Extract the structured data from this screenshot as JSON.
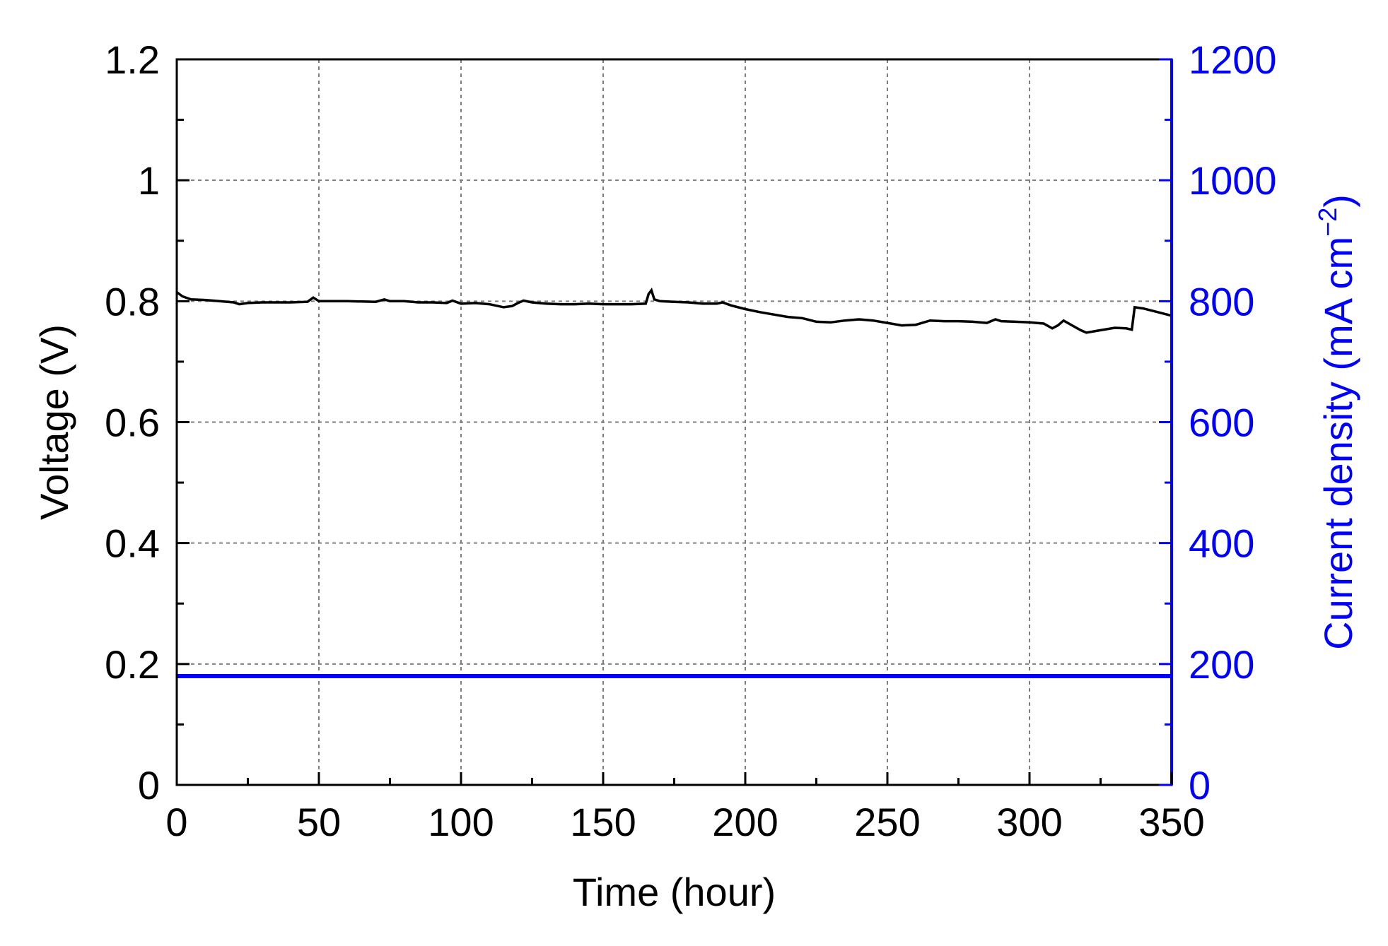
{
  "chart_data": {
    "type": "line",
    "title": "",
    "xlabel": "Time (hour)",
    "ylabel_left": "Voltage (V)",
    "ylabel_right": {
      "prefix": "Current density (mA cm",
      "sup": "−2",
      "suffix": ")"
    },
    "xlim": [
      0,
      350
    ],
    "ylim_left": [
      0,
      1.2
    ],
    "ylim_right": [
      0,
      1200
    ],
    "x_ticks": [
      0,
      50,
      100,
      150,
      200,
      250,
      300,
      350
    ],
    "x_tick_labels": [
      "0",
      "50",
      "100",
      "150",
      "200",
      "250",
      "300",
      "350"
    ],
    "y_left_ticks": [
      0,
      0.2,
      0.4,
      0.6,
      0.8,
      1.0,
      1.2
    ],
    "y_left_tick_labels": [
      "0",
      "0.2",
      "0.4",
      "0.6",
      "0.8",
      "1",
      "1.2"
    ],
    "y_right_ticks": [
      0,
      200,
      400,
      600,
      800,
      1000,
      1200
    ],
    "y_right_tick_labels": [
      "0",
      "200",
      "400",
      "600",
      "800",
      "1000",
      "1200"
    ],
    "grid": true,
    "colors": {
      "voltage": "#000000",
      "current_density": "#0000ff",
      "right_axis": "#0000ff",
      "grid": "#7f7f7f"
    },
    "series": [
      {
        "axis": "left",
        "color": "#000000",
        "x": [
          0,
          2,
          5,
          10,
          15,
          20,
          22,
          25,
          30,
          40,
          46,
          48,
          50,
          55,
          60,
          70,
          73,
          75,
          80,
          85,
          90,
          95,
          97,
          100,
          105,
          110,
          115,
          118,
          120,
          122,
          125,
          130,
          135,
          140,
          145,
          150,
          155,
          160,
          165,
          166,
          167,
          168,
          170,
          175,
          180,
          185,
          190,
          192,
          195,
          200,
          205,
          210,
          215,
          220,
          225,
          230,
          235,
          240,
          245,
          250,
          255,
          260,
          265,
          270,
          275,
          280,
          285,
          288,
          290,
          295,
          300,
          305,
          308,
          310,
          312,
          315,
          318,
          320,
          325,
          330,
          334,
          336,
          337,
          340,
          345,
          350
        ],
        "y": [
          0.815,
          0.808,
          0.803,
          0.802,
          0.8,
          0.798,
          0.795,
          0.797,
          0.798,
          0.798,
          0.799,
          0.806,
          0.8,
          0.8,
          0.8,
          0.799,
          0.803,
          0.8,
          0.8,
          0.798,
          0.798,
          0.797,
          0.801,
          0.796,
          0.797,
          0.795,
          0.79,
          0.792,
          0.797,
          0.801,
          0.798,
          0.796,
          0.795,
          0.795,
          0.796,
          0.795,
          0.795,
          0.795,
          0.796,
          0.812,
          0.818,
          0.803,
          0.8,
          0.799,
          0.798,
          0.796,
          0.796,
          0.798,
          0.793,
          0.787,
          0.782,
          0.778,
          0.774,
          0.772,
          0.766,
          0.765,
          0.768,
          0.77,
          0.768,
          0.764,
          0.76,
          0.761,
          0.768,
          0.767,
          0.767,
          0.766,
          0.764,
          0.77,
          0.767,
          0.766,
          0.765,
          0.763,
          0.755,
          0.76,
          0.768,
          0.76,
          0.752,
          0.748,
          0.752,
          0.756,
          0.755,
          0.753,
          0.79,
          0.788,
          0.782,
          0.776
        ]
      },
      {
        "axis": "right",
        "color": "#0000ff",
        "x": [
          0,
          350
        ],
        "y": [
          180,
          180
        ]
      }
    ]
  }
}
